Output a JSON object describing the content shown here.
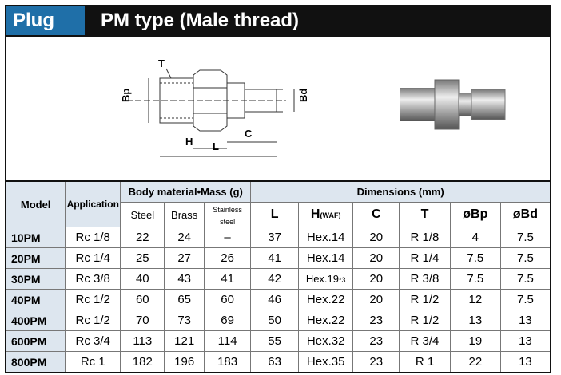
{
  "header": {
    "tag": "Plug",
    "title": "PM type (Male thread)"
  },
  "diagram": {
    "labels": {
      "T": "T",
      "Bp": "Bp",
      "Bd": "Bd",
      "H": "H",
      "L": "L",
      "C": "C"
    }
  },
  "table": {
    "group_headers": {
      "model": "Model",
      "application": "Application",
      "body": "Body material•Mass (g)",
      "dimensions": "Dimensions (mm)"
    },
    "columns": [
      "Steel",
      "Brass",
      "Stainless steel",
      "L",
      "H",
      "C",
      "T",
      "øBp",
      "øBd"
    ],
    "h_suffix": "(WAF)",
    "rows": [
      [
        "10PM",
        "Rc 1/8",
        "22",
        "24",
        "–",
        "37",
        "Hex.14",
        "20",
        "R 1/8",
        "4",
        "7.5"
      ],
      [
        "20PM",
        "Rc 1/4",
        "25",
        "27",
        "26",
        "41",
        "Hex.14",
        "20",
        "R 1/4",
        "7.5",
        "7.5"
      ],
      [
        "30PM",
        "Rc 3/8",
        "40",
        "43",
        "41",
        "42",
        {
          "text": "Hex.19",
          "mark": "*3"
        },
        "20",
        "R 3/8",
        "7.5",
        "7.5"
      ],
      [
        "40PM",
        "Rc 1/2",
        "60",
        "65",
        "60",
        "46",
        "Hex.22",
        "20",
        "R 1/2",
        "12",
        "7.5"
      ],
      [
        "400PM",
        "Rc 1/2",
        "70",
        "73",
        "69",
        "50",
        "Hex.22",
        "23",
        "R 1/2",
        "13",
        "13"
      ],
      [
        "600PM",
        "Rc 3/4",
        "113",
        "121",
        "114",
        "55",
        "Hex.32",
        "23",
        "R 3/4",
        "19",
        "13"
      ],
      [
        "800PM",
        "Rc 1",
        "182",
        "196",
        "183",
        "63",
        "Hex.35",
        "23",
        "R 1",
        "22",
        "13"
      ]
    ]
  }
}
